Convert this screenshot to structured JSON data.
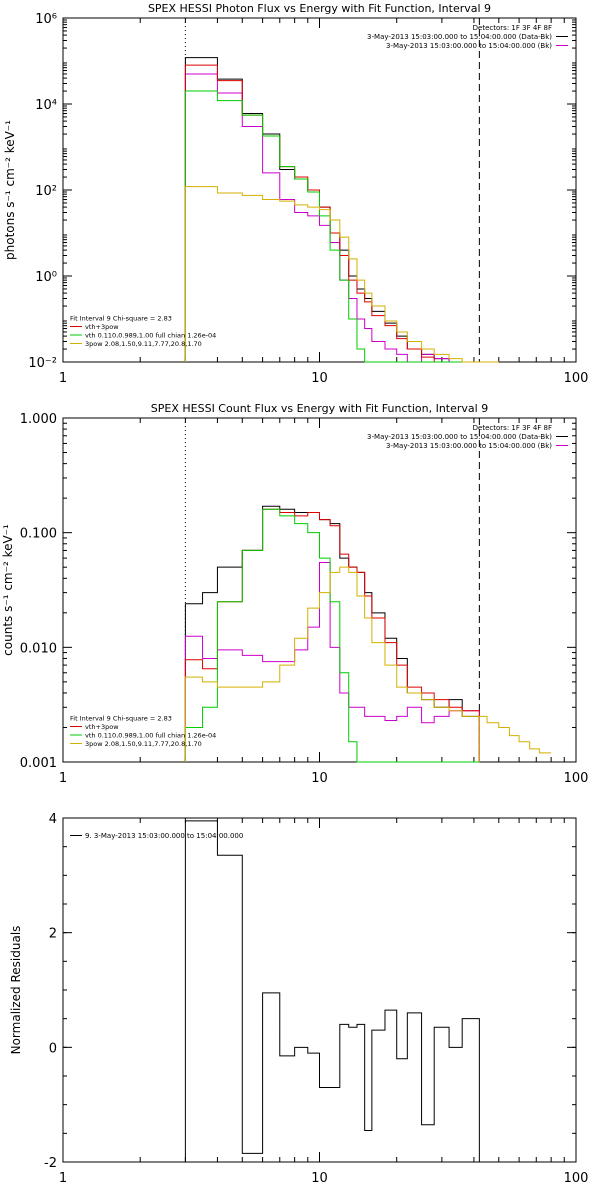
{
  "chart_data": [
    {
      "type": "line",
      "step": true,
      "title": "SPEX HESSI Photon Flux vs Energy with Fit Function, Interval 9",
      "ylabel": "photons s⁻¹ cm⁻² keV⁻¹",
      "xlabel": "",
      "xscale": "log",
      "yscale": "log",
      "xlim": [
        1,
        100
      ],
      "ylim": [
        0.01,
        1000000
      ],
      "x_ticks": [
        1,
        10,
        100
      ],
      "x_tick_labels": [
        "1",
        "10",
        "100"
      ],
      "y_ticks": [
        0.01,
        1,
        100,
        10000,
        1000000
      ],
      "y_tick_labels": [
        "10⁻²",
        "10⁰",
        "10²",
        "10⁴",
        "10⁶"
      ],
      "vlines": [
        {
          "x": 3,
          "style": "dotted"
        },
        {
          "x": 42,
          "style": "dashed"
        }
      ],
      "legend_position": "top-right",
      "legend": [
        {
          "label": "Detectors: 1F 3F 4F 8F",
          "color": "#000000",
          "line": false
        },
        {
          "label": "3-May-2013 15:03:00.000 to 15:04:00.000 (Data-Bk)",
          "color": "#000000",
          "line": true
        },
        {
          "label": "3-May-2013 15:03:00.000 to 15:04:00.000 (Bk)",
          "color": "#cc00cc",
          "line": true
        }
      ],
      "annotation": [
        {
          "label": "Fit Interval 9   Chi-square = 2.83",
          "color": "#000000",
          "line": false
        },
        {
          "label": "vth+3pow",
          "color": "#dd0000",
          "line": true
        },
        {
          "label": "vth 0.110,0.989,1.00  full chian 1.26e-04",
          "color": "#00cc00",
          "line": true
        },
        {
          "label": "3pow 2.08,1.50,9.11,7.77,20.8,1.70",
          "color": "#d4b000",
          "line": true
        }
      ],
      "edges": [
        3,
        4,
        5,
        6,
        7,
        8,
        9,
        10,
        11,
        12,
        13,
        14,
        15,
        16,
        18,
        20,
        22,
        25,
        28,
        32,
        36,
        42,
        50
      ],
      "series": [
        {
          "name": "Data-Bk",
          "color": "#000000",
          "values": [
            120000,
            38000,
            6000,
            2000,
            300,
            180,
            100,
            40,
            10,
            4,
            1,
            0.5,
            0.3,
            0.15,
            0.08,
            0.04,
            0.02,
            0.015,
            0.012,
            0.01,
            0.01,
            0.01
          ]
        },
        {
          "name": "Bk",
          "color": "#cc00cc",
          "values": [
            50000,
            18000,
            3000,
            250,
            60,
            30,
            25,
            15,
            6,
            0.8,
            0.3,
            0.1,
            0.06,
            0.03,
            0.02,
            0.015,
            0.01,
            0.015,
            0.012,
            0.01,
            0.01,
            0.01
          ]
        },
        {
          "name": "vth+3pow",
          "color": "#dd0000",
          "values": [
            80000,
            35000,
            5500,
            1800,
            350,
            200,
            100,
            40,
            10,
            3,
            0.8,
            0.4,
            0.25,
            0.12,
            0.07,
            0.035,
            0.02,
            0.013,
            0.01,
            0.01,
            0.01,
            0.01
          ]
        },
        {
          "name": "vth",
          "color": "#00cc00",
          "values": [
            20000,
            12000,
            5500,
            1800,
            350,
            180,
            90,
            25,
            4,
            0.8,
            0.1,
            0.02,
            0.01,
            0.01,
            0.01,
            0.01,
            0.01,
            0.01,
            0.01,
            0.01,
            0.01,
            0.01
          ]
        },
        {
          "name": "3pow",
          "color": "#d4b000",
          "values": [
            120,
            85,
            75,
            60,
            55,
            45,
            40,
            35,
            20,
            8,
            2.5,
            0.8,
            0.4,
            0.2,
            0.09,
            0.05,
            0.03,
            0.02,
            0.015,
            0.012,
            0.01,
            0.01
          ]
        }
      ]
    },
    {
      "type": "line",
      "step": true,
      "title": "SPEX HESSI Count Flux vs Energy with Fit Function, Interval 9",
      "ylabel": "counts s⁻¹ cm⁻² keV⁻¹",
      "xlabel": "",
      "xscale": "log",
      "yscale": "log",
      "xlim": [
        1,
        100
      ],
      "ylim": [
        0.001,
        1
      ],
      "x_ticks": [
        1,
        10,
        100
      ],
      "x_tick_labels": [
        "1",
        "10",
        "100"
      ],
      "y_ticks": [
        0.001,
        0.01,
        0.1,
        1
      ],
      "y_tick_labels": [
        "0.001",
        "0.010",
        "0.100",
        "1.000"
      ],
      "vlines": [
        {
          "x": 3,
          "style": "dotted"
        },
        {
          "x": 42,
          "style": "dashed"
        }
      ],
      "legend_position": "top-right",
      "legend": [
        {
          "label": "Detectors: 1F 3F 4F 8F",
          "color": "#000000",
          "line": false
        },
        {
          "label": "3-May-2013 15:03:00.000 to 15:04:00.000 (Data-Bk)",
          "color": "#000000",
          "line": true
        },
        {
          "label": "3-May-2013 15:03:00.000 to 15:04:00.000 (Bk)",
          "color": "#cc00cc",
          "line": true
        }
      ],
      "annotation": [
        {
          "label": "Fit Interval 9   Chi-square = 2.83",
          "color": "#000000",
          "line": false
        },
        {
          "label": "vth+3pow",
          "color": "#dd0000",
          "line": true
        },
        {
          "label": "vth 0.110,0.989,1.00  full chian 1.26e-04",
          "color": "#00cc00",
          "line": true
        },
        {
          "label": "3pow 2.08,1.50,9.11,7.77,20.8,1.70",
          "color": "#d4b000",
          "line": true
        }
      ],
      "edges": [
        3,
        3.5,
        4,
        5,
        6,
        7,
        8,
        9,
        10,
        11,
        12,
        13,
        14,
        15,
        16,
        18,
        20,
        22,
        25,
        28,
        32,
        36,
        42
      ],
      "series": [
        {
          "name": "Data-Bk",
          "color": "#000000",
          "values": [
            0.024,
            0.03,
            0.05,
            0.07,
            0.17,
            0.16,
            0.15,
            0.15,
            0.13,
            0.12,
            0.06,
            0.05,
            0.045,
            0.03,
            0.02,
            0.012,
            0.008,
            0.004,
            0.0035,
            0.003,
            0.0035,
            0.0025
          ]
        },
        {
          "name": "Bk",
          "color": "#cc00cc",
          "values": [
            0.0125,
            0.008,
            0.0095,
            0.0085,
            0.0075,
            0.0075,
            0.0095,
            0.015,
            0.055,
            0.01,
            0.004,
            0.003,
            0.003,
            0.0025,
            0.0025,
            0.0023,
            0.0025,
            0.003,
            0.0022,
            0.0025,
            0.0028,
            0.0028
          ]
        },
        {
          "name": "vth+3pow",
          "color": "#dd0000",
          "values": [
            0.0078,
            0.0065,
            0.025,
            0.07,
            0.16,
            0.15,
            0.14,
            0.15,
            0.13,
            0.115,
            0.065,
            0.05,
            0.045,
            0.028,
            0.018,
            0.011,
            0.007,
            0.0045,
            0.004,
            0.0035,
            0.003,
            0.0028
          ]
        },
        {
          "name": "vth",
          "color": "#00cc00",
          "values": [
            0.002,
            0.003,
            0.025,
            0.07,
            0.16,
            0.14,
            0.12,
            0.1,
            0.06,
            0.025,
            0.006,
            0.0015,
            0.001,
            0.001,
            0.001,
            0.001,
            0.001,
            0.001,
            0.001,
            0.001,
            0.001,
            0.001
          ]
        },
        {
          "name": "3pow",
          "color": "#d4b000",
          "values": [
            0.0055,
            0.005,
            0.0045,
            0.0045,
            0.005,
            0.007,
            0.012,
            0.022,
            0.03,
            0.045,
            0.05,
            0.045,
            0.028,
            0.018,
            0.011,
            0.007,
            0.0045,
            0.004,
            0.0035,
            0.003,
            0.0028,
            0.0025
          ]
        }
      ],
      "tail": {
        "color": "#d4b000",
        "edges": [
          42,
          45,
          50,
          55,
          60,
          66,
          72,
          80
        ],
        "values": [
          0.0025,
          0.0022,
          0.002,
          0.0017,
          0.0015,
          0.0013,
          0.0012
        ]
      }
    },
    {
      "type": "line",
      "step": true,
      "title": "",
      "ylabel": "Normalized Residuals",
      "xlabel": "",
      "xscale": "log",
      "yscale": "linear",
      "xlim": [
        1,
        100
      ],
      "ylim": [
        -2,
        4
      ],
      "x_ticks": [
        1,
        10,
        100
      ],
      "x_tick_labels": [
        "1",
        "10",
        "100"
      ],
      "y_ticks": [
        -2,
        0,
        2,
        4
      ],
      "y_tick_labels": [
        "-2",
        "0",
        "2",
        "4"
      ],
      "legend_position": "top-left",
      "legend": [
        {
          "label": "9.  3-May-2013 15:03:00.000 to 15:04:00.000",
          "color": "#000000",
          "line": true
        }
      ],
      "edges": [
        3,
        4,
        5,
        6,
        7,
        8,
        9,
        10,
        11,
        12,
        13,
        14,
        15,
        16,
        18,
        20,
        22,
        25,
        28,
        32,
        36,
        42
      ],
      "series": [
        {
          "name": "Residuals",
          "color": "#000000",
          "values": [
            3.95,
            3.35,
            -1.85,
            0.95,
            -0.15,
            0.0,
            -0.1,
            -0.7,
            -0.7,
            0.4,
            0.35,
            0.4,
            -1.45,
            0.3,
            0.65,
            -0.2,
            0.6,
            -1.35,
            0.35,
            0.0,
            0.5
          ]
        }
      ]
    }
  ]
}
